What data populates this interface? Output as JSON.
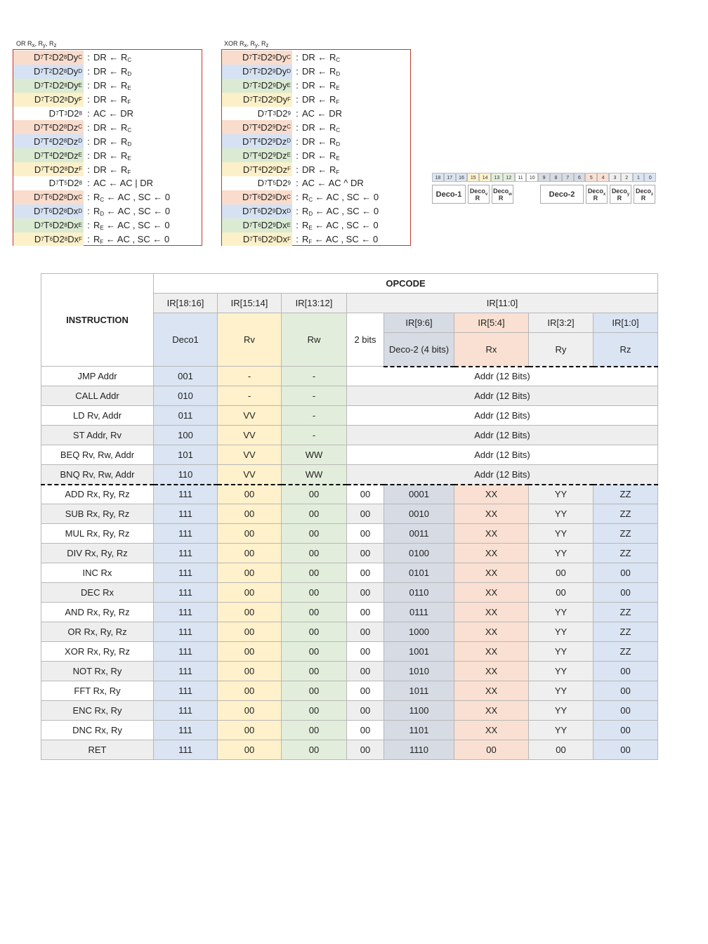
{
  "or_block": {
    "caption": "OR Rx, Ry, Rz",
    "rows": [
      {
        "label": "D7T2D28DyC",
        "action": "DR ← RC",
        "color": "C"
      },
      {
        "label": "D7T2D28DyD",
        "action": "DR ← RD",
        "color": "D"
      },
      {
        "label": "D7T2D28DyE",
        "action": "DR ← RE",
        "color": "E"
      },
      {
        "label": "D7T2D28DyF",
        "action": "DR ← RF",
        "color": "F"
      },
      {
        "label": "D7T3D28",
        "action": "AC ← DR",
        "color": ""
      },
      {
        "label": "D7T4D28DzC",
        "action": "DR ← RC",
        "color": "C"
      },
      {
        "label": "D7T4D28DzD",
        "action": "DR ← RD",
        "color": "D"
      },
      {
        "label": "D7T4D28DzE",
        "action": "DR ← RE",
        "color": "E"
      },
      {
        "label": "D7T4D28DzF",
        "action": "DR ← RF",
        "color": "F"
      },
      {
        "label": "D7T5D28",
        "action": "AC ← AC | DR",
        "color": ""
      },
      {
        "label": "D7T6D28DxC",
        "action": "RC ← AC , SC ← 0",
        "color": "C"
      },
      {
        "label": "D7T6D28DxD",
        "action": "RD ← AC , SC ← 0",
        "color": "D"
      },
      {
        "label": "D7T6D28DxE",
        "action": "RE ← AC , SC ← 0",
        "color": "E"
      },
      {
        "label": "D7T6D28DxF",
        "action": "RF ← AC , SC ← 0",
        "color": "F"
      }
    ]
  },
  "xor_block": {
    "caption": "XOR Rx, Ry, Rz",
    "rows": [
      {
        "label": "D7T2D29DyC",
        "action": "DR ← RC",
        "color": "C"
      },
      {
        "label": "D7T2D29DyD",
        "action": "DR ← RD",
        "color": "D"
      },
      {
        "label": "D7T2D29DyE",
        "action": "DR ← RE",
        "color": "E"
      },
      {
        "label": "D7T2D29DyF",
        "action": "DR ← RF",
        "color": "F"
      },
      {
        "label": "D7T3D29",
        "action": "AC ← DR",
        "color": ""
      },
      {
        "label": "D7T4D29DzC",
        "action": "DR ← RC",
        "color": "C"
      },
      {
        "label": "D7T4D29DzD",
        "action": "DR ← RD",
        "color": "D"
      },
      {
        "label": "D7T4D29DzE",
        "action": "DR ← RE",
        "color": "E"
      },
      {
        "label": "D7T4D29DzF",
        "action": "DR ← RF",
        "color": "F"
      },
      {
        "label": "D7T5D29",
        "action": "AC ← AC ^ DR",
        "color": ""
      },
      {
        "label": "D7T6D29DxC",
        "action": "RC ← AC , SC ← 0",
        "color": "C"
      },
      {
        "label": "D7T6D29DxD",
        "action": "RD ← AC , SC ← 0",
        "color": "D"
      },
      {
        "label": "D7T6D29DxE",
        "action": "RE ← AC , SC ← 0",
        "color": "E"
      },
      {
        "label": "D7T6D29DxF",
        "action": "RF ← AC , SC ← 0",
        "color": "F"
      }
    ]
  },
  "bit_diagram": {
    "bits": [
      "18",
      "17",
      "16",
      "15",
      "14",
      "13",
      "12",
      "11",
      "10",
      "9",
      "8",
      "7",
      "6",
      "5",
      "4",
      "3",
      "2",
      "1",
      "0"
    ],
    "bit_colors": [
      "#dae4f2",
      "#dae4f2",
      "#dae4f2",
      "#fff1cb",
      "#fff1cb",
      "#e2eedb",
      "#e2eedb",
      "#ffffff",
      "#ffffff",
      "#d6dbe4",
      "#d6dbe4",
      "#d6dbe4",
      "#d6dbe4",
      "#f9e0d2",
      "#f9e0d2",
      "#efefef",
      "#efefef",
      "#dae4f2",
      "#dae4f2"
    ],
    "boxes": [
      {
        "line1": "Deco-1",
        "line2": ""
      },
      {
        "line1": "Deco",
        "line2": "Rv"
      },
      {
        "line1": "Deco",
        "line2": "Rw"
      },
      {
        "line1": "Deco-2",
        "line2": ""
      },
      {
        "line1": "Deco",
        "line2": "Rx"
      },
      {
        "line1": "Deco",
        "line2": "Ry"
      },
      {
        "line1": "Deco",
        "line2": "Rz"
      }
    ]
  },
  "table": {
    "instruction_header": "INSTRUCTION",
    "opcode_header": "OPCODE",
    "ir_18_16": "IR[18:16]",
    "ir_15_14": "IR[15:14]",
    "ir_13_12": "IR[13:12]",
    "ir_11_0": "IR[11:0]",
    "ir_9_6": "IR[9:6]",
    "ir_5_4": "IR[5:4]",
    "ir_3_2": "IR[3:2]",
    "ir_1_0": "IR[1:0]",
    "deco1": "Deco1",
    "rv": "Rv",
    "rw": "Rw",
    "two_bits": "2 bits",
    "deco2": "Deco-2 (4 bits)",
    "rx": "Rx",
    "ry": "Ry",
    "rz": "Rz",
    "addr_rows": [
      {
        "instr": "JMP Addr",
        "d1": "001",
        "rv": "-",
        "rw": "-",
        "addr": "Addr (12 Bits)"
      },
      {
        "instr": "CALL Addr",
        "d1": "010",
        "rv": "-",
        "rw": "-",
        "addr": "Addr (12 Bits)"
      },
      {
        "instr": "LD Rv, Addr",
        "d1": "011",
        "rv": "VV",
        "rw": "-",
        "addr": "Addr (12 Bits)"
      },
      {
        "instr": "ST Addr, Rv",
        "d1": "100",
        "rv": "VV",
        "rw": "-",
        "addr": "Addr (12 Bits)"
      },
      {
        "instr": "BEQ Rv, Rw, Addr",
        "d1": "101",
        "rv": "VV",
        "rw": "WW",
        "addr": "Addr (12 Bits)"
      },
      {
        "instr": "BNQ Rv, Rw, Addr",
        "d1": "110",
        "rv": "VV",
        "rw": "WW",
        "addr": "Addr (12 Bits)"
      }
    ],
    "reg_rows": [
      {
        "instr": "ADD Rx, Ry, Rz",
        "d1": "111",
        "rv": "00",
        "rw": "00",
        "b2": "00",
        "d2": "0001",
        "rx": "XX",
        "ry": "YY",
        "rz": "ZZ"
      },
      {
        "instr": "SUB Rx, Ry, Rz",
        "d1": "111",
        "rv": "00",
        "rw": "00",
        "b2": "00",
        "d2": "0010",
        "rx": "XX",
        "ry": "YY",
        "rz": "ZZ"
      },
      {
        "instr": "MUL Rx, Ry, Rz",
        "d1": "111",
        "rv": "00",
        "rw": "00",
        "b2": "00",
        "d2": "0011",
        "rx": "XX",
        "ry": "YY",
        "rz": "ZZ"
      },
      {
        "instr": "DIV Rx, Ry, Rz",
        "d1": "111",
        "rv": "00",
        "rw": "00",
        "b2": "00",
        "d2": "0100",
        "rx": "XX",
        "ry": "YY",
        "rz": "ZZ"
      },
      {
        "instr": "INC Rx",
        "d1": "111",
        "rv": "00",
        "rw": "00",
        "b2": "00",
        "d2": "0101",
        "rx": "XX",
        "ry": "00",
        "rz": "00"
      },
      {
        "instr": "DEC Rx",
        "d1": "111",
        "rv": "00",
        "rw": "00",
        "b2": "00",
        "d2": "0110",
        "rx": "XX",
        "ry": "00",
        "rz": "00"
      },
      {
        "instr": "AND Rx, Ry, Rz",
        "d1": "111",
        "rv": "00",
        "rw": "00",
        "b2": "00",
        "d2": "0111",
        "rx": "XX",
        "ry": "YY",
        "rz": "ZZ"
      },
      {
        "instr": "OR Rx, Ry, Rz",
        "d1": "111",
        "rv": "00",
        "rw": "00",
        "b2": "00",
        "d2": "1000",
        "rx": "XX",
        "ry": "YY",
        "rz": "ZZ"
      },
      {
        "instr": "XOR Rx, Ry, Rz",
        "d1": "111",
        "rv": "00",
        "rw": "00",
        "b2": "00",
        "d2": "1001",
        "rx": "XX",
        "ry": "YY",
        "rz": "ZZ"
      },
      {
        "instr": "NOT Rx, Ry",
        "d1": "111",
        "rv": "00",
        "rw": "00",
        "b2": "00",
        "d2": "1010",
        "rx": "XX",
        "ry": "YY",
        "rz": "00"
      },
      {
        "instr": "FFT Rx, Ry",
        "d1": "111",
        "rv": "00",
        "rw": "00",
        "b2": "00",
        "d2": "1011",
        "rx": "XX",
        "ry": "YY",
        "rz": "00"
      },
      {
        "instr": "ENC Rx, Ry",
        "d1": "111",
        "rv": "00",
        "rw": "00",
        "b2": "00",
        "d2": "1100",
        "rx": "XX",
        "ry": "YY",
        "rz": "00"
      },
      {
        "instr": "DNC Rx, Ry",
        "d1": "111",
        "rv": "00",
        "rw": "00",
        "b2": "00",
        "d2": "1101",
        "rx": "XX",
        "ry": "YY",
        "rz": "00"
      },
      {
        "instr": "RET",
        "d1": "111",
        "rv": "00",
        "rw": "00",
        "b2": "00",
        "d2": "1110",
        "rx": "00",
        "ry": "00",
        "rz": "00"
      }
    ]
  }
}
